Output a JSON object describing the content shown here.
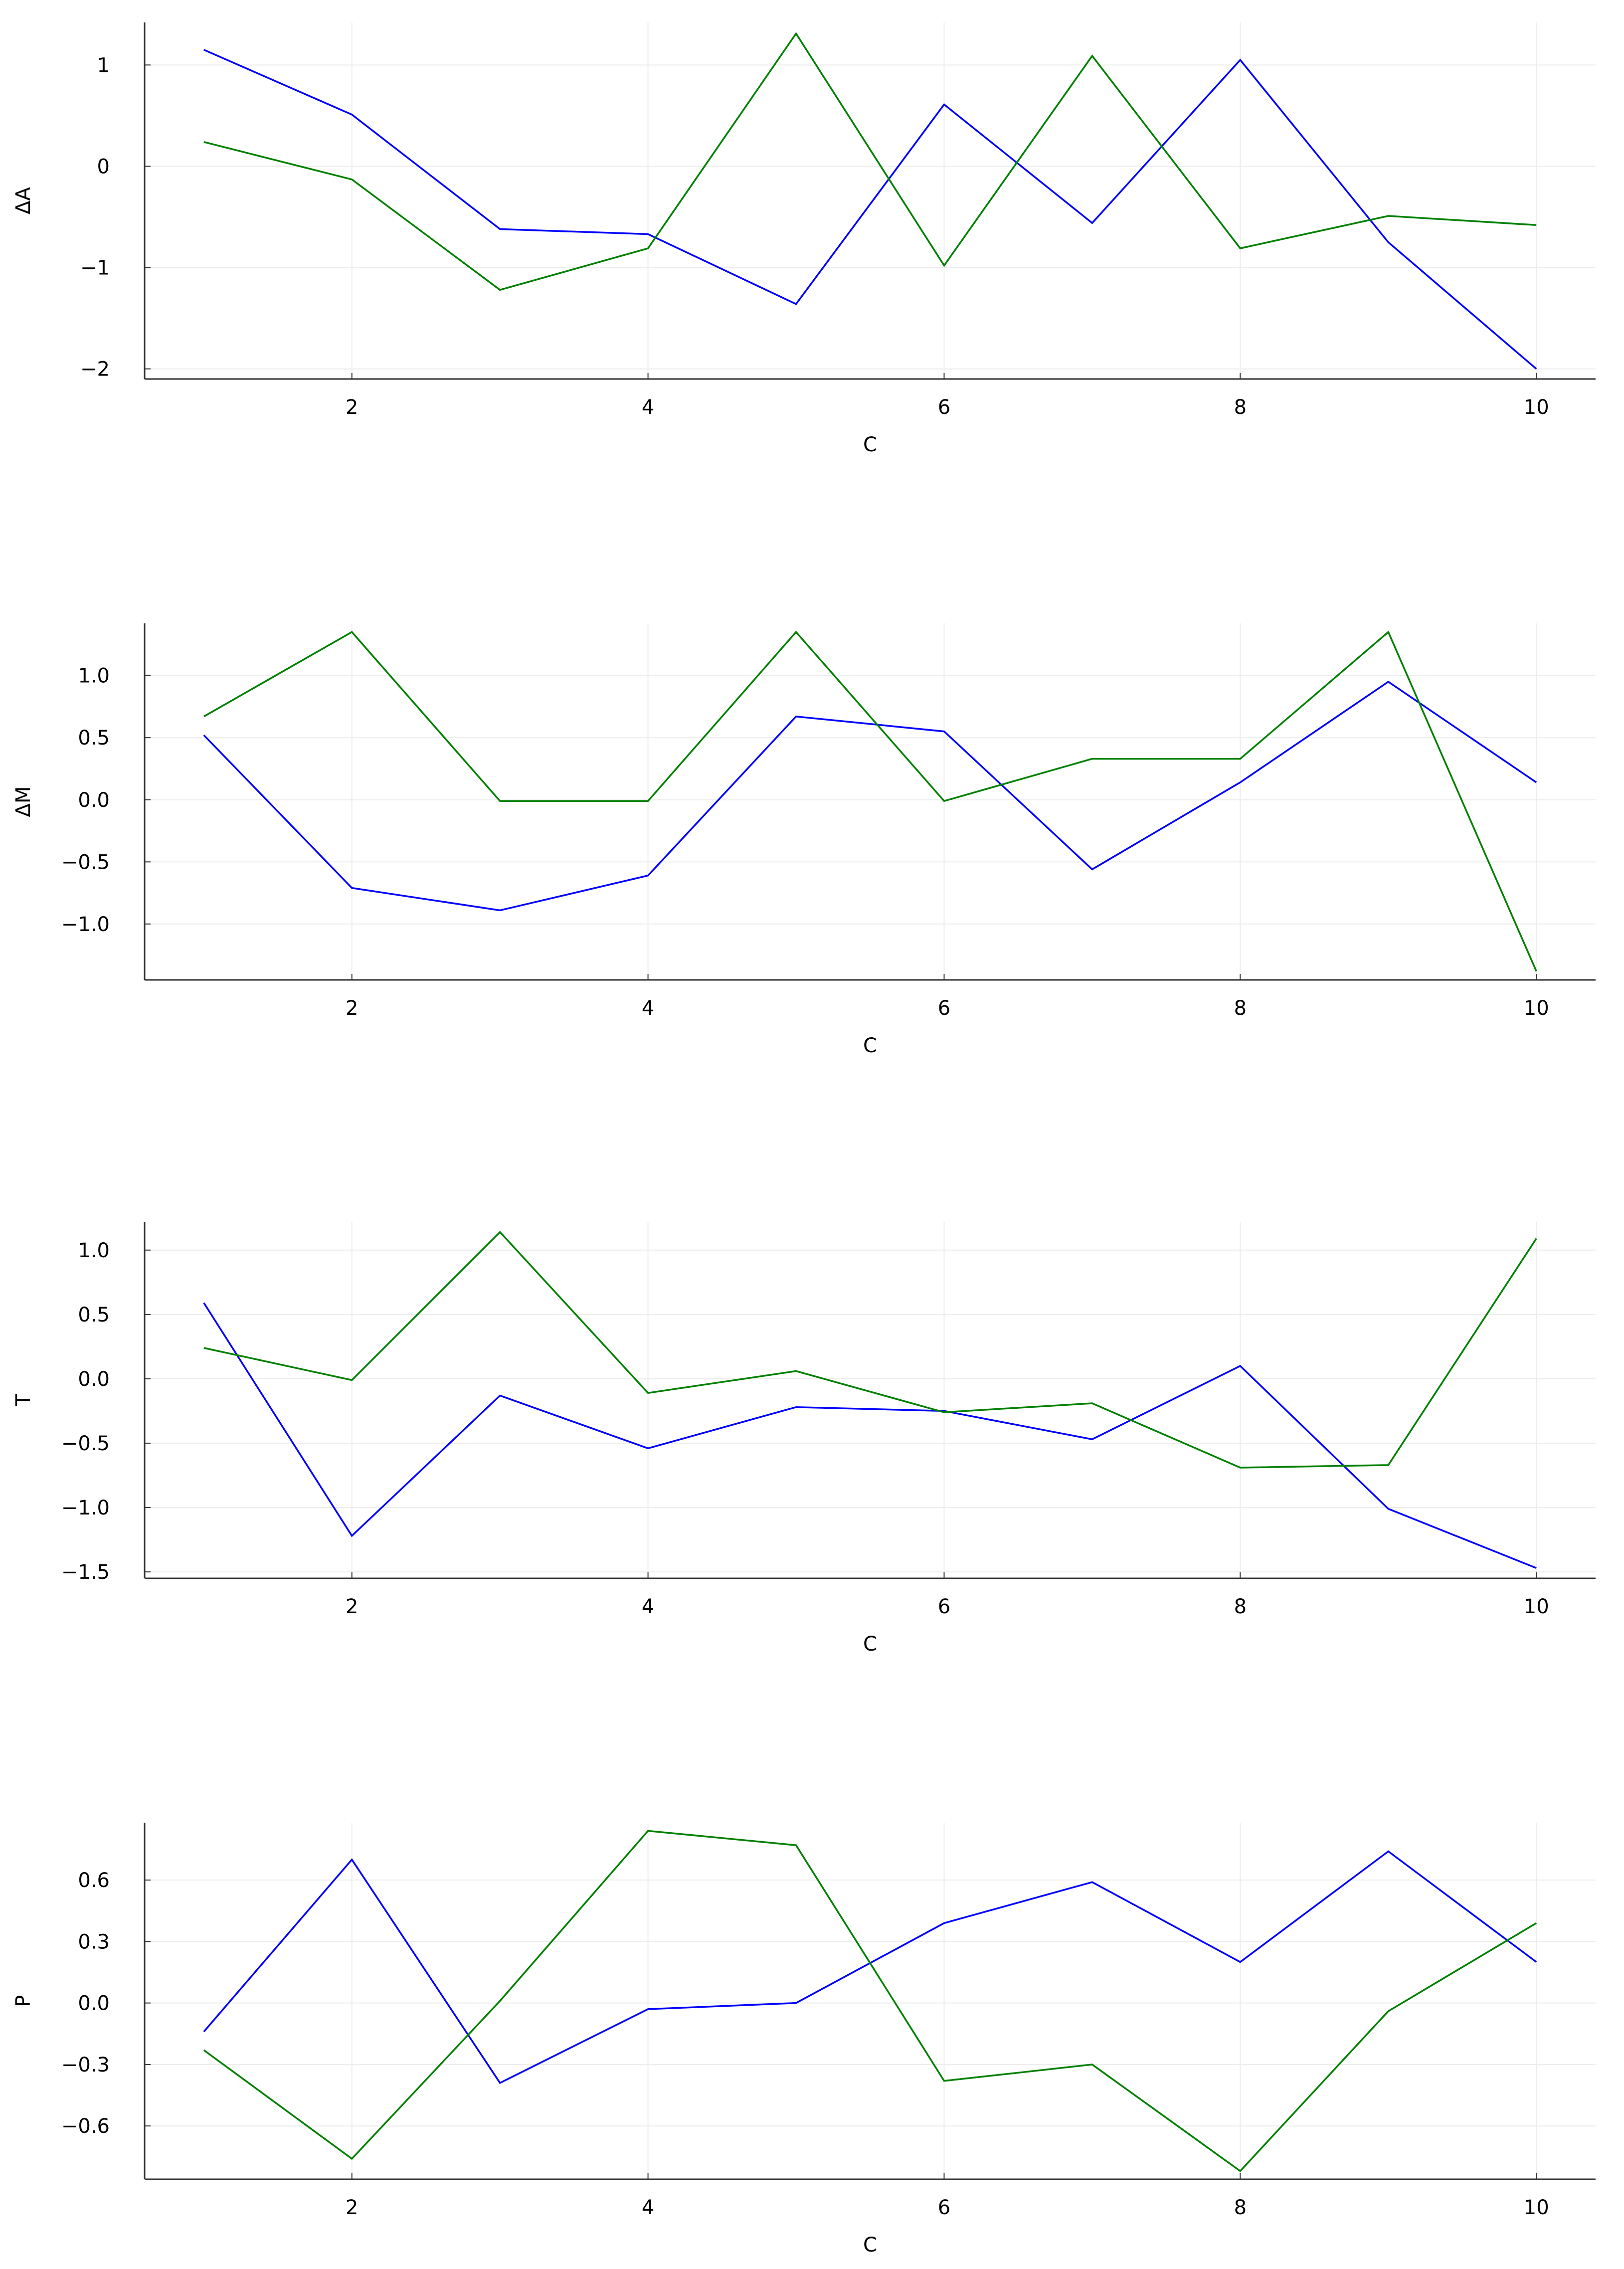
{
  "chart_data": [
    {
      "type": "line",
      "title": "",
      "xlabel": "C",
      "ylabel": "ΔA",
      "xlim": [
        0.6,
        10.4
      ],
      "ylim": [
        -2.1,
        1.42
      ],
      "xticks": [
        2,
        4,
        6,
        8,
        10
      ],
      "xtick_labels": [
        "2",
        "4",
        "6",
        "8",
        "10"
      ],
      "yticks": [
        -2,
        -1,
        0,
        1
      ],
      "ytick_labels": [
        "−2",
        "−1",
        "0",
        "1"
      ],
      "grid": true,
      "legend": "none",
      "x": [
        1,
        2,
        3,
        4,
        5,
        6,
        7,
        8,
        9,
        10
      ],
      "series": [
        {
          "name": "series-blue",
          "color": "#0000ff",
          "values": [
            1.15,
            0.51,
            -0.62,
            -0.67,
            -1.36,
            0.61,
            -0.56,
            1.05,
            -0.75,
            -2.0
          ]
        },
        {
          "name": "series-green",
          "color": "#008000",
          "values": [
            0.24,
            -0.13,
            -1.22,
            -0.81,
            1.31,
            -0.98,
            1.09,
            -0.81,
            -0.49,
            -0.58
          ]
        }
      ]
    },
    {
      "type": "line",
      "title": "",
      "xlabel": "C",
      "ylabel": "ΔM",
      "xlim": [
        0.6,
        10.4
      ],
      "ylim": [
        -1.45,
        1.42
      ],
      "xticks": [
        2,
        4,
        6,
        8,
        10
      ],
      "xtick_labels": [
        "2",
        "4",
        "6",
        "8",
        "10"
      ],
      "yticks": [
        -1.0,
        -0.5,
        0.0,
        0.5,
        1.0
      ],
      "ytick_labels": [
        "−1.0",
        "−0.5",
        "0.0",
        "0.5",
        "1.0"
      ],
      "grid": true,
      "legend": "none",
      "x": [
        1,
        2,
        3,
        4,
        5,
        6,
        7,
        8,
        9,
        10
      ],
      "series": [
        {
          "name": "series-blue",
          "color": "#0000ff",
          "values": [
            0.52,
            -0.71,
            -0.89,
            -0.61,
            0.67,
            0.55,
            -0.56,
            0.14,
            0.95,
            0.14
          ]
        },
        {
          "name": "series-green",
          "color": "#008000",
          "values": [
            0.67,
            1.35,
            -0.01,
            -0.01,
            1.35,
            -0.01,
            0.33,
            0.33,
            1.35,
            -1.38
          ]
        }
      ]
    },
    {
      "type": "line",
      "title": "",
      "xlabel": "C",
      "ylabel": "T",
      "xlim": [
        0.6,
        10.4
      ],
      "ylim": [
        -1.55,
        1.22
      ],
      "xticks": [
        2,
        4,
        6,
        8,
        10
      ],
      "xtick_labels": [
        "2",
        "4",
        "6",
        "8",
        "10"
      ],
      "yticks": [
        -1.5,
        -1.0,
        -0.5,
        0.0,
        0.5,
        1.0
      ],
      "ytick_labels": [
        "−1.5",
        "−1.0",
        "−0.5",
        "0.0",
        "0.5",
        "1.0"
      ],
      "grid": true,
      "legend": "none",
      "x": [
        1,
        2,
        3,
        4,
        5,
        6,
        7,
        8,
        9,
        10
      ],
      "series": [
        {
          "name": "series-blue",
          "color": "#0000ff",
          "values": [
            0.59,
            -1.22,
            -0.13,
            -0.54,
            -0.22,
            -0.25,
            -0.47,
            0.1,
            -1.01,
            -1.47
          ]
        },
        {
          "name": "series-green",
          "color": "#008000",
          "values": [
            0.24,
            -0.01,
            1.14,
            -0.11,
            0.06,
            -0.26,
            -0.19,
            -0.69,
            -0.67,
            1.09
          ]
        }
      ]
    },
    {
      "type": "line",
      "title": "",
      "xlabel": "C",
      "ylabel": "P",
      "xlim": [
        0.6,
        10.4
      ],
      "ylim": [
        -0.86,
        0.88
      ],
      "xticks": [
        2,
        4,
        6,
        8,
        10
      ],
      "xtick_labels": [
        "2",
        "4",
        "6",
        "8",
        "10"
      ],
      "yticks": [
        -0.6,
        -0.3,
        0.0,
        0.3,
        0.6
      ],
      "ytick_labels": [
        "−0.6",
        "−0.3",
        "0.0",
        "0.3",
        "0.6"
      ],
      "grid": true,
      "legend": "none",
      "x": [
        1,
        2,
        3,
        4,
        5,
        6,
        7,
        8,
        9,
        10
      ],
      "series": [
        {
          "name": "series-blue",
          "color": "#0000ff",
          "values": [
            -0.14,
            0.7,
            -0.39,
            -0.03,
            0.0,
            0.39,
            0.59,
            0.2,
            0.74,
            0.2
          ]
        },
        {
          "name": "series-green",
          "color": "#008000",
          "values": [
            -0.23,
            -0.76,
            0.01,
            0.84,
            0.77,
            -0.38,
            -0.3,
            -0.82,
            -0.04,
            0.39
          ]
        }
      ]
    }
  ]
}
